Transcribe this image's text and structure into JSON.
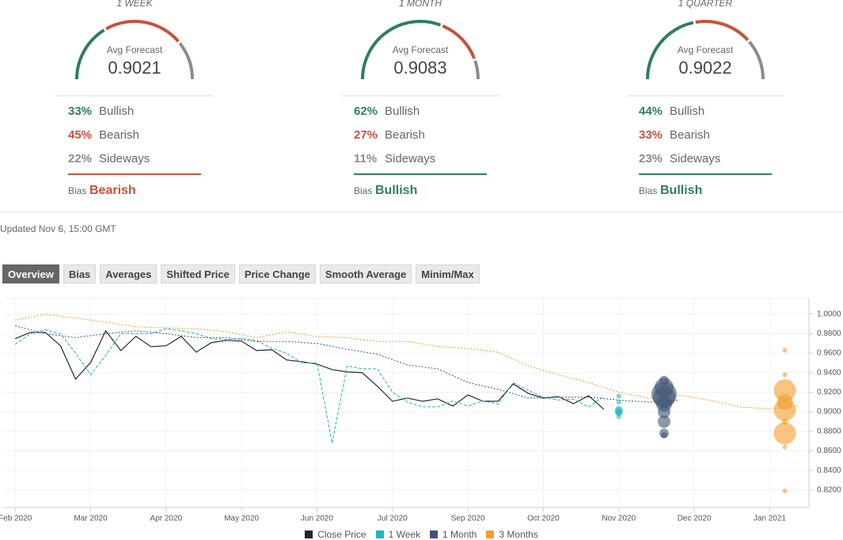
{
  "panels": [
    {
      "period": "1 WEEK",
      "avg_label": "Avg Forecast",
      "avg_value": "0.9021",
      "rows": [
        {
          "value": 33,
          "label": "33%",
          "name": "Bullish",
          "color": "#2f7d63"
        },
        {
          "value": 45,
          "label": "45%",
          "name": "Bearish",
          "color": "#c9513d"
        },
        {
          "value": 22,
          "label": "22%",
          "name": "Sideways",
          "color": "#8c8c8c"
        }
      ],
      "bias_label": "Bias",
      "bias": "Bearish",
      "bias_color": "#c9513d"
    },
    {
      "period": "1 MONTH",
      "avg_label": "Avg Forecast",
      "avg_value": "0.9083",
      "rows": [
        {
          "value": 62,
          "label": "62%",
          "name": "Bullish",
          "color": "#2f7d63"
        },
        {
          "value": 27,
          "label": "27%",
          "name": "Bearish",
          "color": "#c9513d"
        },
        {
          "value": 11,
          "label": "11%",
          "name": "Sideways",
          "color": "#8c8c8c"
        }
      ],
      "bias_label": "Bias",
      "bias": "Bullish",
      "bias_color": "#2f7d63"
    },
    {
      "period": "1 QUARTER",
      "avg_label": "Avg Forecast",
      "avg_value": "0.9022",
      "rows": [
        {
          "value": 44,
          "label": "44%",
          "name": "Bullish",
          "color": "#2f7d63"
        },
        {
          "value": 33,
          "label": "33%",
          "name": "Bearish",
          "color": "#c9513d"
        },
        {
          "value": 23,
          "label": "23%",
          "name": "Sideways",
          "color": "#8c8c8c"
        }
      ],
      "bias_label": "Bias",
      "bias": "Bullish",
      "bias_color": "#2f7d63"
    }
  ],
  "updated": "Updated Nov 6, 15:00 GMT",
  "tabs": [
    "Overview",
    "Bias",
    "Averages",
    "Shifted Price",
    "Price Change",
    "Smooth Average",
    "Minim/Max"
  ],
  "active_tab": 0,
  "chart_data": {
    "type": "line",
    "xlim": [
      -0.17,
      10.52
    ],
    "xticks": [
      {
        "value": 0,
        "label": "Feb 2020"
      },
      {
        "value": 1,
        "label": "Mar 2020"
      },
      {
        "value": 2,
        "label": "Apr 2020"
      },
      {
        "value": 3,
        "label": "May 2020"
      },
      {
        "value": 4,
        "label": "Jun 2020"
      },
      {
        "value": 5,
        "label": "Jul 2020"
      },
      {
        "value": 6,
        "label": "Sep 2020"
      },
      {
        "value": 7,
        "label": "Oct 2020"
      },
      {
        "value": 8,
        "label": "Nov 2020"
      },
      {
        "value": 9,
        "label": "Dec 2020"
      },
      {
        "value": 10,
        "label": "Jan 2021"
      }
    ],
    "ylim": [
      0.802,
      1.016
    ],
    "yticks": [
      {
        "value": 1,
        "label": "1.0000"
      },
      {
        "value": 0.98,
        "label": "0.9800"
      },
      {
        "value": 0.96,
        "label": "0.9600"
      },
      {
        "value": 0.94,
        "label": "0.9400"
      },
      {
        "value": 0.92,
        "label": "0.9200"
      },
      {
        "value": 0.9,
        "label": "0.9000"
      },
      {
        "value": 0.88,
        "label": "0.8800"
      },
      {
        "value": 0.86,
        "label": "0.8600"
      },
      {
        "value": 0.84,
        "label": "0.8400"
      },
      {
        "value": 0.82,
        "label": "0.8200"
      }
    ],
    "grid": true,
    "series": [
      {
        "name": "Close Price",
        "color": "#222831",
        "line_style": "solid",
        "x": [
          0,
          0.2,
          0.4,
          0.6,
          0.8,
          1,
          1.2,
          1.4,
          1.6,
          1.8,
          2,
          2.2,
          2.4,
          2.6,
          2.8,
          3,
          3.2,
          3.4,
          3.6,
          3.8,
          4,
          4.2,
          4.4,
          4.6,
          4.8,
          5,
          5.2,
          5.4,
          5.6,
          5.8,
          6,
          6.2,
          6.4,
          6.6,
          6.8,
          7,
          7.2,
          7.4,
          7.6,
          7.8
        ],
        "values": [
          0.9749,
          0.9813,
          0.9813,
          0.9676,
          0.9335,
          0.9505,
          0.983,
          0.9627,
          0.9773,
          0.9667,
          0.9676,
          0.9773,
          0.9611,
          0.9708,
          0.9732,
          0.9724,
          0.9627,
          0.9635,
          0.953,
          0.9513,
          0.9489,
          0.9432,
          0.9408,
          0.94,
          0.9262,
          0.9108,
          0.914,
          0.9108,
          0.9132,
          0.9059,
          0.9173,
          0.9108,
          0.9108,
          0.9286,
          0.9189,
          0.914,
          0.9156,
          0.9083,
          0.9165,
          0.9027
        ]
      },
      {
        "name": "1 Week",
        "color": "#1fb5c0",
        "line_style": "dashed",
        "x": [
          0,
          0.2,
          0.4,
          0.6,
          0.8,
          1,
          1.2,
          1.4,
          1.6,
          1.8,
          2,
          2.2,
          2.4,
          2.6,
          2.8,
          3,
          3.2,
          3.4,
          3.6,
          3.8,
          4,
          4.2,
          4.4,
          4.6,
          4.8,
          5,
          5.2,
          5.4,
          5.6,
          5.8,
          6,
          6.2,
          6.4,
          6.6,
          6.8,
          7,
          7.2,
          7.4,
          7.6,
          7.8
        ],
        "values": [
          0.969,
          0.98,
          0.984,
          0.98,
          0.96,
          0.938,
          0.958,
          0.98,
          0.98,
          0.98,
          0.985,
          0.983,
          0.98,
          0.975,
          0.974,
          0.975,
          0.973,
          0.965,
          0.96,
          0.95,
          0.95,
          0.868,
          0.947,
          0.944,
          0.944,
          0.92,
          0.91,
          0.905,
          0.905,
          0.911,
          0.906,
          0.911,
          0.908,
          0.93,
          0.922,
          0.915,
          0.912,
          0.913,
          0.905,
          0.916
        ],
        "forecast": {
          "x": 8.0,
          "values": [
            0.916,
            0.91,
            0.9,
            0.899,
            0.895,
            0.902
          ],
          "sizes": [
            3,
            3,
            5,
            4,
            3,
            5
          ]
        }
      },
      {
        "name": "1 Month",
        "color": "#3e5573",
        "line_style": "dotted",
        "x": [
          0,
          0.4,
          0.8,
          1.2,
          1.6,
          2,
          2.4,
          2.8,
          3.2,
          3.6,
          4,
          4.4,
          4.8,
          5.2,
          5.6,
          6,
          6.4,
          6.8,
          7.2,
          7.6,
          8,
          8.4,
          8.8
        ],
        "values": [
          0.988,
          0.98,
          0.976,
          0.98,
          0.983,
          0.98,
          0.976,
          0.976,
          0.972,
          0.972,
          0.97,
          0.964,
          0.959,
          0.948,
          0.944,
          0.93,
          0.923,
          0.914,
          0.915,
          0.915,
          0.912,
          0.91,
          0.912
        ],
        "forecast": {
          "x": 8.6,
          "values": [
            0.932,
            0.925,
            0.918,
            0.915,
            0.908,
            0.9,
            0.89,
            0.878,
            0.876
          ],
          "sizes": [
            6,
            12,
            16,
            14,
            10,
            8,
            8,
            6,
            4
          ]
        }
      },
      {
        "name": "3 Months",
        "color": "#f39c2c",
        "line_style": "dotted",
        "x": [
          0,
          0.4,
          0.8,
          1.2,
          1.6,
          2,
          2.4,
          2.8,
          3.2,
          3.6,
          4,
          4.4,
          4.8,
          5.2,
          5.6,
          6,
          6.4,
          6.8,
          7.2,
          7.6,
          8,
          8.4,
          8.8,
          9.2,
          9.6,
          10,
          10.4
        ],
        "values": [
          0.994,
          1,
          0.996,
          0.992,
          0.987,
          0.986,
          0.985,
          0.982,
          0.976,
          0.982,
          0.977,
          0.976,
          0.972,
          0.972,
          0.967,
          0.965,
          0.961,
          0.947,
          0.938,
          0.93,
          0.92,
          0.914,
          0.917,
          0.912,
          0.905,
          0.903,
          0.906
        ],
        "forecast": {
          "x": 10.2,
          "values": [
            0.963,
            0.938,
            0.922,
            0.91,
            0.902,
            0.89,
            0.878,
            0.864,
            0.819
          ],
          "sizes": [
            3,
            3,
            14,
            10,
            14,
            4,
            14,
            3,
            3
          ]
        }
      }
    ]
  }
}
